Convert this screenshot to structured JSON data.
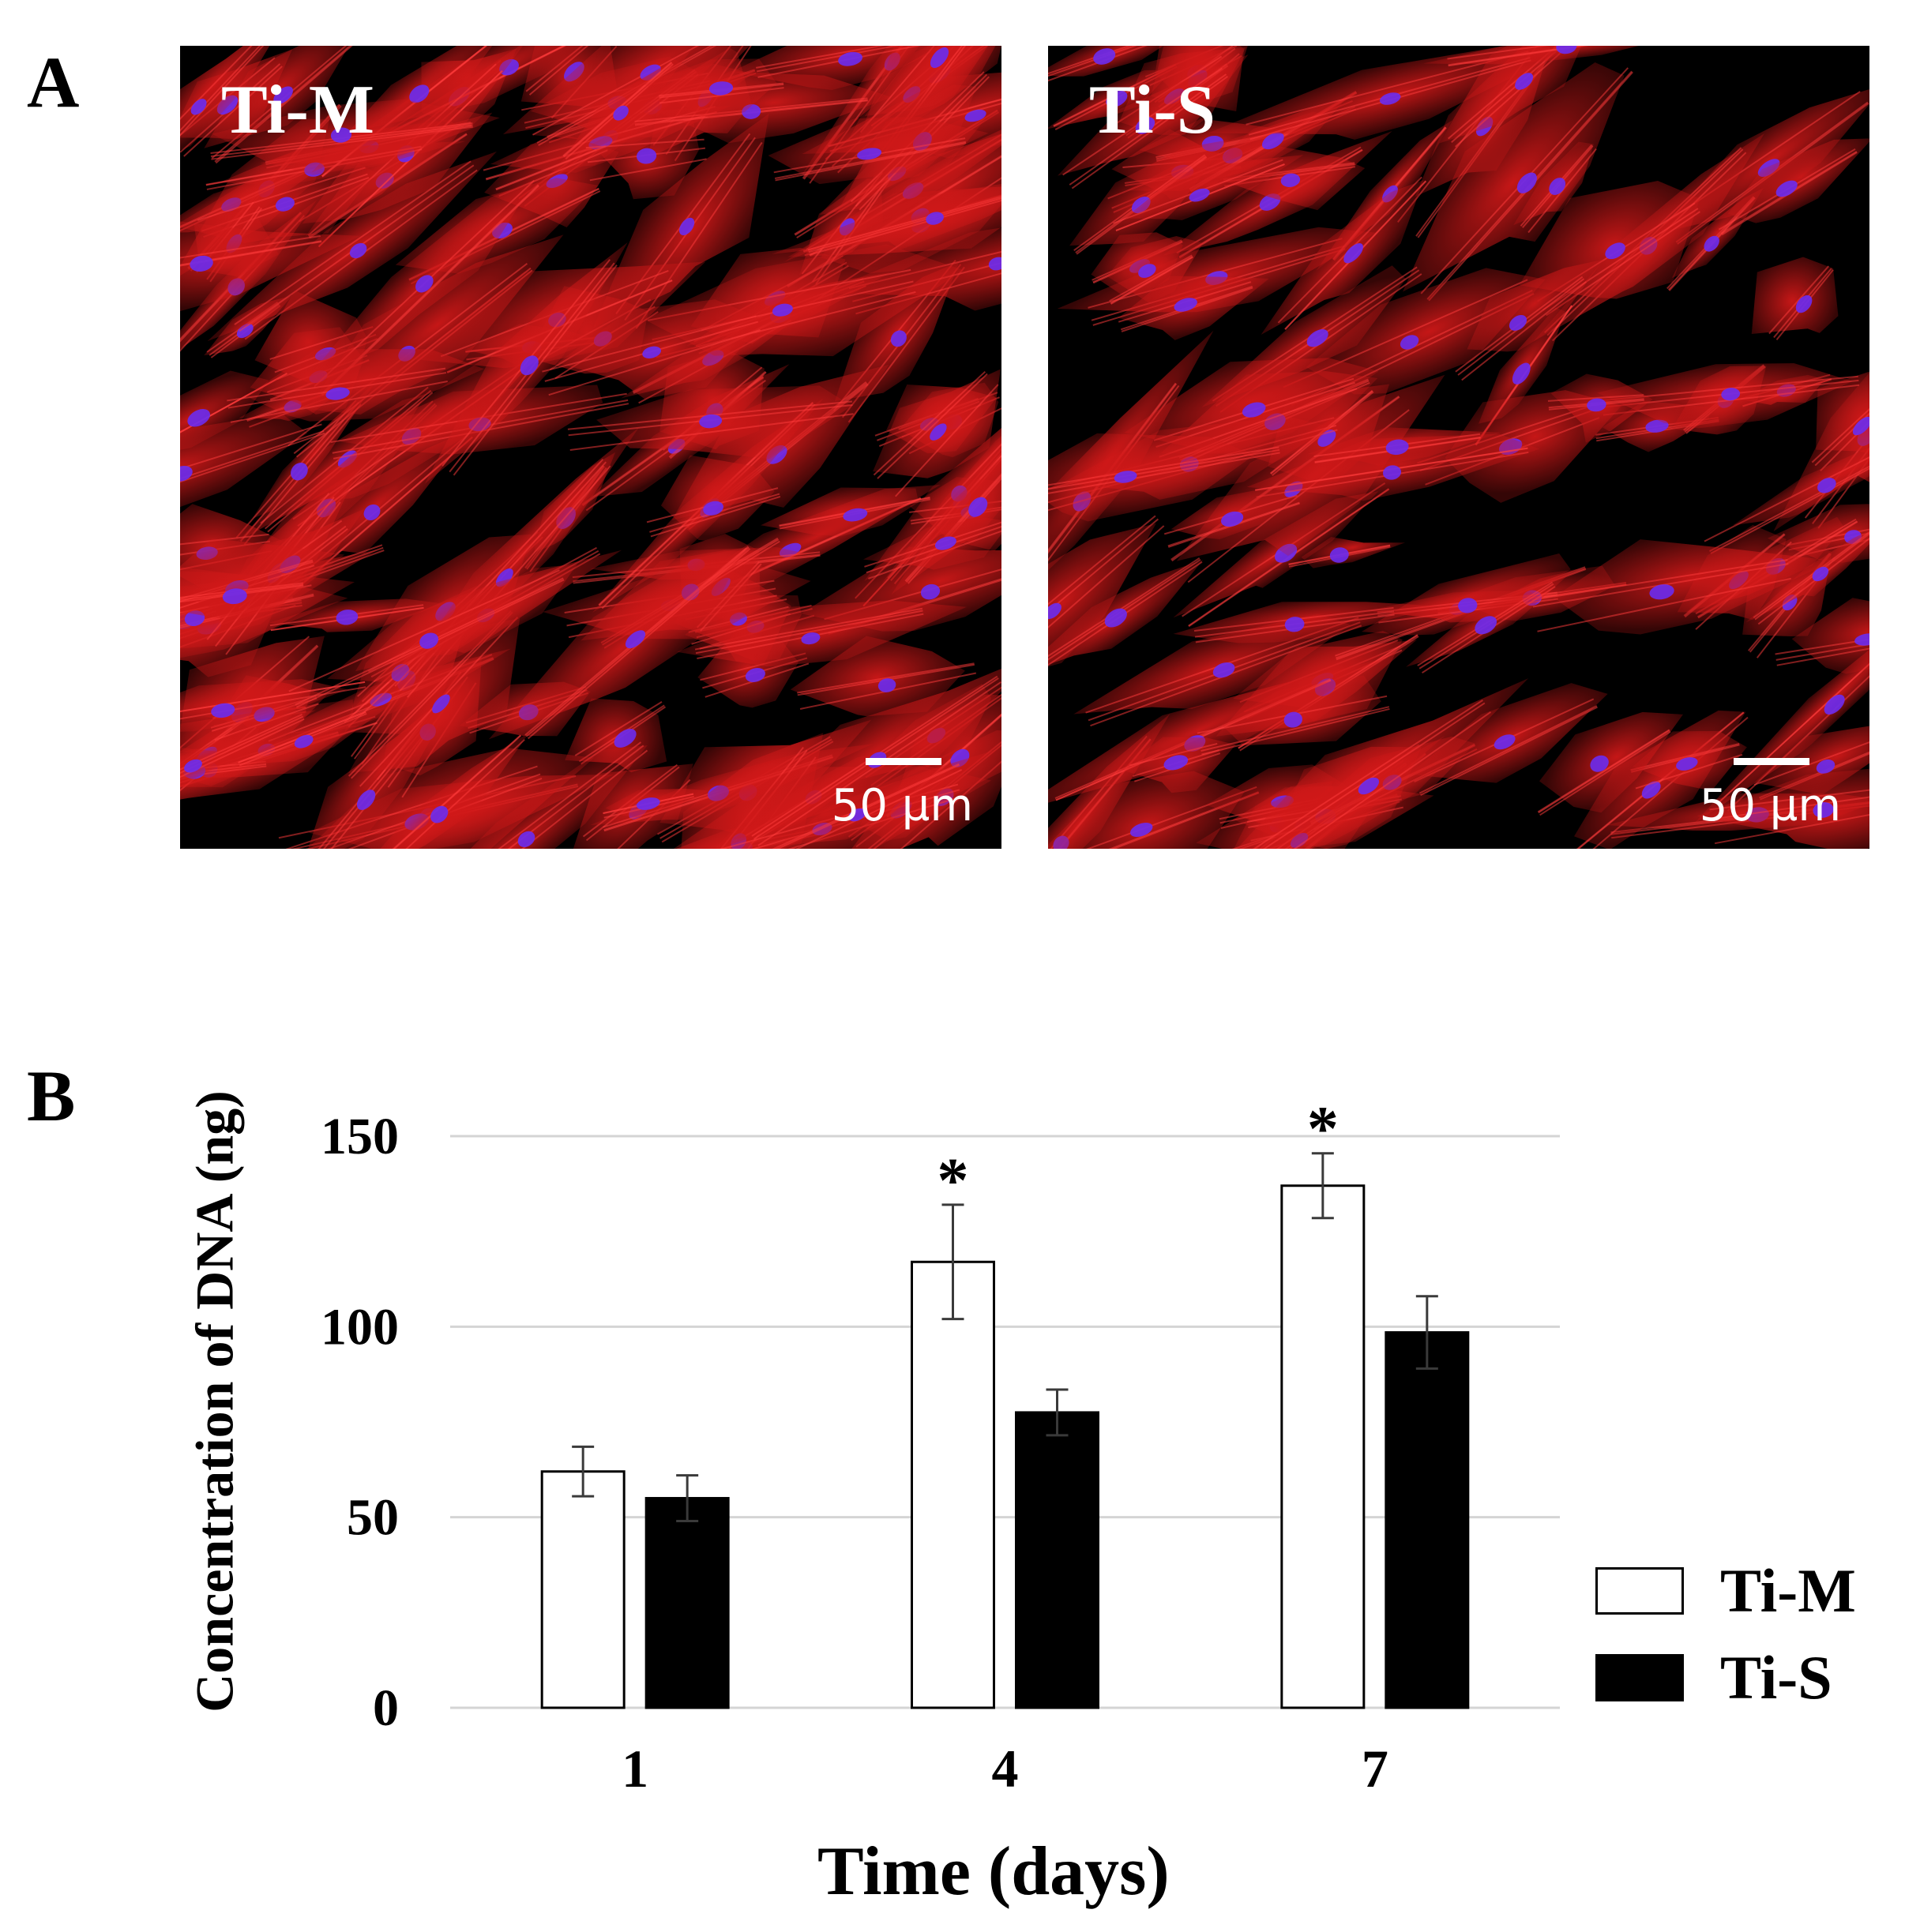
{
  "panels": {
    "a": {
      "letter": "A"
    },
    "b": {
      "letter": "B"
    }
  },
  "micrographs": [
    {
      "label": "Ti-M",
      "scale_label": "50 µm",
      "stain_colors": {
        "actin": "#d01818",
        "nuclei": "#6a2cf0"
      }
    },
    {
      "label": "Ti-S",
      "scale_label": "50 µm",
      "stain_colors": {
        "actin": "#d01818",
        "nuclei": "#6a2cf0"
      }
    }
  ],
  "chart_data": {
    "type": "bar",
    "categories": [
      "1",
      "4",
      "7"
    ],
    "series": [
      {
        "name": "Ti-M",
        "values": [
          62,
          117,
          137
        ],
        "errors": [
          6.5,
          15,
          8.5
        ],
        "color": "#ffffff"
      },
      {
        "name": "Ti-S",
        "values": [
          55,
          77.5,
          98.5
        ],
        "errors": [
          6,
          6,
          9.5
        ],
        "color": "#000000"
      }
    ],
    "significance": [
      "",
      "*",
      "*"
    ],
    "title": "",
    "xlabel": "Time (days)",
    "ylabel": "Concentration of DNA (ng)",
    "ylim": [
      0,
      150
    ],
    "yticks": [
      "0",
      "50",
      "100",
      "150"
    ],
    "grid": true,
    "legend": "right"
  }
}
